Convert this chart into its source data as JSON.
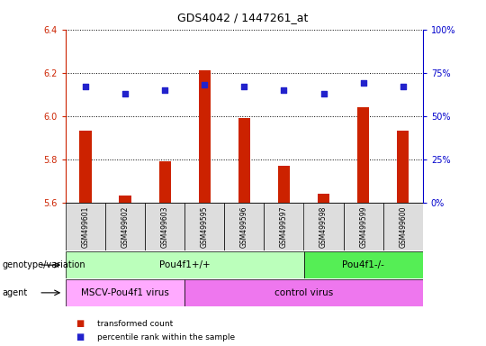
{
  "title": "GDS4042 / 1447261_at",
  "samples": [
    "GSM499601",
    "GSM499602",
    "GSM499603",
    "GSM499595",
    "GSM499596",
    "GSM499597",
    "GSM499598",
    "GSM499599",
    "GSM499600"
  ],
  "transformed_counts": [
    5.93,
    5.63,
    5.79,
    6.21,
    5.99,
    5.77,
    5.64,
    6.04,
    5.93
  ],
  "percentile_ranks": [
    67,
    63,
    65,
    68,
    67,
    65,
    63,
    69,
    67
  ],
  "ylim_left": [
    5.6,
    6.4
  ],
  "ylim_right": [
    0,
    100
  ],
  "yticks_left": [
    5.6,
    5.8,
    6.0,
    6.2,
    6.4
  ],
  "yticks_right": [
    0,
    25,
    50,
    75,
    100
  ],
  "bar_color": "#cc2200",
  "dot_color": "#2222cc",
  "bar_bottom": 5.6,
  "genotype_labels": [
    {
      "text": "Pou4f1+/+",
      "start": 0,
      "end": 6,
      "color": "#bbffbb"
    },
    {
      "text": "Pou4f1-/-",
      "start": 6,
      "end": 9,
      "color": "#55ee55"
    }
  ],
  "agent_labels": [
    {
      "text": "MSCV-Pou4f1 virus",
      "start": 0,
      "end": 3,
      "color": "#ffaaff"
    },
    {
      "text": "control virus",
      "start": 3,
      "end": 9,
      "color": "#ee77ee"
    }
  ],
  "legend_items": [
    {
      "label": "transformed count",
      "color": "#cc2200"
    },
    {
      "label": "percentile rank within the sample",
      "color": "#2222cc"
    }
  ],
  "genotype_row_label": "genotype/variation",
  "agent_row_label": "agent",
  "sample_bg_color": "#dddddd"
}
